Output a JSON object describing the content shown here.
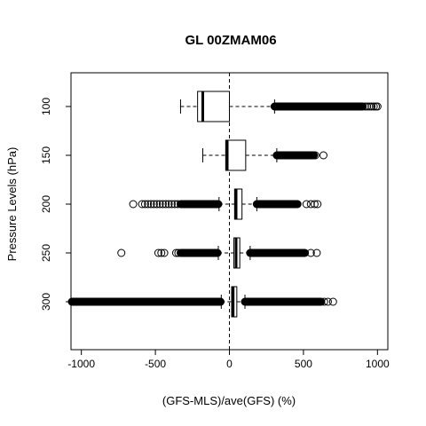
{
  "chart_data": {
    "type": "boxplot",
    "orientation": "horizontal",
    "title": "GL 00ZMAM06",
    "xlabel": "(GFS-MLS)/ave(GFS) (%)",
    "ylabel": "Pressure Levels (hPa)",
    "xlim": [
      -1070,
      1070
    ],
    "xticks": [
      "-1000",
      "-500",
      "0",
      "500",
      "1000"
    ],
    "xtick_values": [
      -1000,
      -500,
      0,
      500,
      1000
    ],
    "reference_line_x": 0,
    "categories": [
      "100",
      "150",
      "200",
      "250",
      "300"
    ],
    "boxes": [
      {
        "label": "100",
        "whisker_low": -330,
        "q1": -215,
        "median": -180,
        "q3": 0,
        "whisker_high": 305,
        "outlier_dense_ranges": [
          [
            305,
            900
          ]
        ],
        "outlier_points": [
          915,
          930,
          945,
          960,
          975,
          990,
          1000
        ]
      },
      {
        "label": "150",
        "whisker_low": -180,
        "q1": -25,
        "median": -15,
        "q3": 110,
        "whisker_high": 320,
        "outlier_dense_ranges": [
          [
            320,
            570
          ]
        ],
        "outlier_points": [
          580,
          635
        ]
      },
      {
        "label": "200",
        "whisker_low": -70,
        "q1": 35,
        "median": 45,
        "q3": 85,
        "whisker_high": 185,
        "outlier_dense_ranges": [
          [
            -330,
            -75
          ],
          [
            185,
            460
          ]
        ],
        "outlier_points": [
          -650,
          -590,
          -570,
          -550,
          -530,
          -510,
          -490,
          -470,
          -450,
          -430,
          -410,
          -390,
          -370,
          -350,
          520,
          550,
          575,
          595
        ]
      },
      {
        "label": "250",
        "whisker_low": -75,
        "q1": 30,
        "median": 45,
        "q3": 70,
        "whisker_high": 140,
        "outlier_dense_ranges": [
          [
            -330,
            -80
          ],
          [
            140,
            510
          ]
        ],
        "outlier_points": [
          -730,
          -480,
          -460,
          -440,
          -360,
          -345,
          550,
          590
        ]
      },
      {
        "label": "300",
        "whisker_low": -55,
        "q1": 15,
        "median": 25,
        "q3": 50,
        "whisker_high": 105,
        "outlier_dense_ranges": [
          [
            -1070,
            -60
          ],
          [
            105,
            620
          ]
        ],
        "outlier_points": [
          640,
          665,
          700
        ]
      }
    ],
    "grid": false,
    "legend": "none"
  }
}
